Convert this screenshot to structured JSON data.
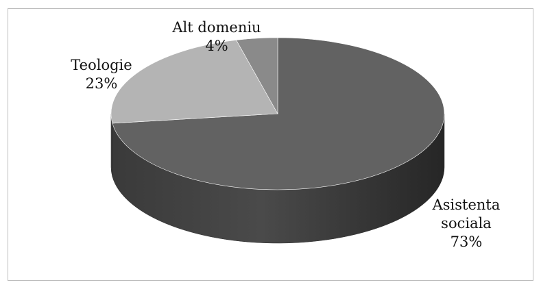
{
  "chart_data": {
    "type": "pie",
    "categories": [
      "Asistenta sociala",
      "Teologie",
      "Alt domeniu"
    ],
    "values": [
      73,
      23,
      4
    ],
    "value_labels": [
      "73%",
      "23%",
      "4%"
    ],
    "colors": [
      "#626262",
      "#b4b4b4",
      "#8a8a8a"
    ]
  }
}
